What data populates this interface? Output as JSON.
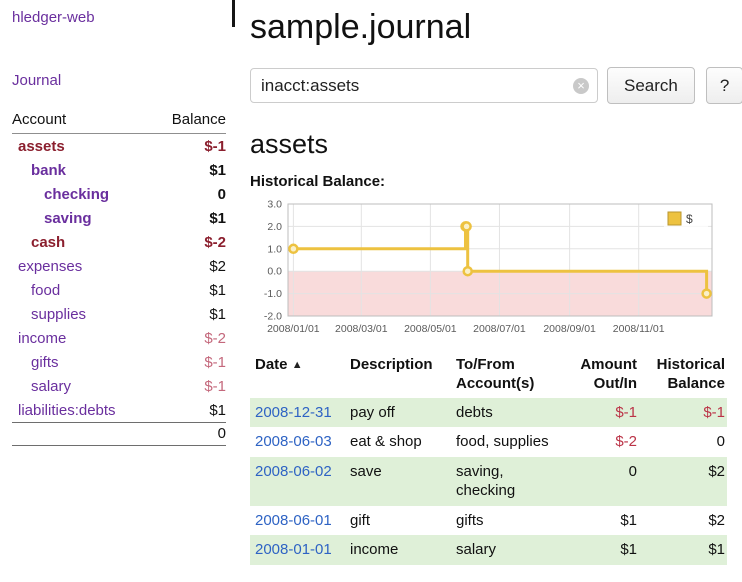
{
  "colors": {
    "accent_purple": "#6a2f9e",
    "negative_strong": "#8b1f2e",
    "negative_soft": "#c4687c",
    "register_negative": "#bb3347",
    "link_blue": "#2e63c4",
    "row_shade_green": "#dff0d8",
    "chart_negative_region": "#f9dbdb"
  },
  "sidebar": {
    "title": "hledger-web",
    "nav": {
      "journal": "Journal"
    },
    "accounts": {
      "header": {
        "account": "Account",
        "balance": "Balance"
      },
      "rows": [
        {
          "name": "assets",
          "balance": "$-1",
          "indent": 0,
          "bold": true
        },
        {
          "name": "bank",
          "balance": "$1",
          "indent": 1,
          "bold": true
        },
        {
          "name": "checking",
          "balance": "0",
          "indent": 2,
          "bold": true
        },
        {
          "name": "saving",
          "balance": "$1",
          "indent": 2,
          "bold": true
        },
        {
          "name": "cash",
          "balance": "$-2",
          "indent": 1,
          "bold": true
        },
        {
          "name": "expenses",
          "balance": "$2",
          "indent": 0,
          "bold": false
        },
        {
          "name": "food",
          "balance": "$1",
          "indent": 1,
          "bold": false
        },
        {
          "name": "supplies",
          "balance": "$1",
          "indent": 1,
          "bold": false
        },
        {
          "name": "income",
          "balance": "$-2",
          "indent": 0,
          "bold": false
        },
        {
          "name": "gifts",
          "balance": "$-1",
          "indent": 1,
          "bold": false
        },
        {
          "name": "salary",
          "balance": "$-1",
          "indent": 1,
          "bold": false
        },
        {
          "name": "liabilities:debts",
          "balance": "$1",
          "indent": 0,
          "bold": false
        }
      ],
      "total": "0"
    }
  },
  "main": {
    "title": "sample.journal",
    "search": {
      "value": "inacct:assets",
      "clear_icon": "×",
      "button_label": "Search",
      "help_label": "?"
    },
    "account_heading": "assets"
  },
  "chart_data": {
    "type": "line",
    "step": true,
    "title": "Historical Balance:",
    "x_type": "date",
    "series": [
      {
        "name": "$",
        "color": "#edc240",
        "points": [
          [
            "2008-01-01",
            1
          ],
          [
            "2008-06-01",
            2
          ],
          [
            "2008-06-02",
            2
          ],
          [
            "2008-06-03",
            0
          ],
          [
            "2008-12-31",
            -1
          ]
        ]
      }
    ],
    "ylim": [
      -2,
      3
    ],
    "yticks": [
      3,
      2,
      1,
      0,
      -1,
      -2
    ],
    "ytick_labels": [
      "3.0",
      "2.0",
      "1.0",
      "0.0",
      "-1.0",
      "-2.0"
    ],
    "xtick_labels": [
      "2008/01/01",
      "2008/03/01",
      "2008/05/01",
      "2008/07/01",
      "2008/09/01",
      "2008/11/01"
    ],
    "grid": true,
    "legend": {
      "label": "$",
      "position": "top-right"
    },
    "negative_region": true
  },
  "register": {
    "sort_icon": "▲",
    "headers": [
      "Date",
      "Description",
      "To/From Account(s)",
      "Amount Out/In",
      "Historical Balance"
    ],
    "rows": [
      {
        "date": "2008-12-31",
        "description": "pay off",
        "accounts": "debts",
        "amount": "$-1",
        "balance": "$-1"
      },
      {
        "date": "2008-06-03",
        "description": "eat & shop",
        "accounts": "food, supplies",
        "amount": "$-2",
        "balance": "0"
      },
      {
        "date": "2008-06-02",
        "description": "save",
        "accounts": "saving, checking",
        "amount": "0",
        "balance": "$2"
      },
      {
        "date": "2008-06-01",
        "description": "gift",
        "accounts": "gifts",
        "amount": "$1",
        "balance": "$2"
      },
      {
        "date": "2008-01-01",
        "description": "income",
        "accounts": "salary",
        "amount": "$1",
        "balance": "$1"
      }
    ]
  }
}
